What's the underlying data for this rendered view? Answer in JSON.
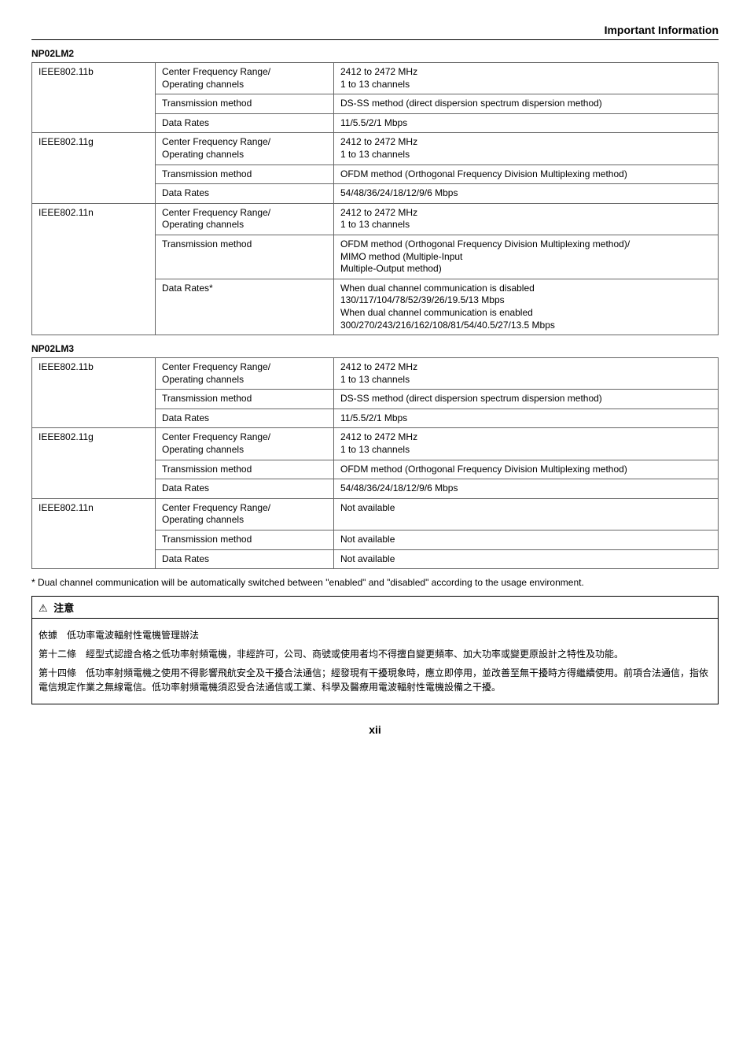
{
  "header": {
    "section_title": "Important Information"
  },
  "model1": {
    "name": "NP02LM2",
    "rows": [
      {
        "c1": "IEEE802.11b",
        "c2": "Center Frequency Range/\nOperating channels",
        "c3": "2412 to 2472 MHz\n1 to 13 channels",
        "span1": 3
      },
      {
        "c2": "Transmission method",
        "c3": "DS-SS method (direct dispersion spectrum dispersion method)"
      },
      {
        "c2": "Data Rates",
        "c3": "11/5.5/2/1 Mbps"
      },
      {
        "c1": "IEEE802.11g",
        "c2": "Center Frequency Range/\nOperating channels",
        "c3": "2412 to 2472 MHz\n1 to 13 channels",
        "span1": 3
      },
      {
        "c2": "Transmission method",
        "c3": "OFDM method (Orthogonal Frequency Division Multiplexing method)"
      },
      {
        "c2": "Data Rates",
        "c3": "54/48/36/24/18/12/9/6 Mbps"
      },
      {
        "c1": "IEEE802.11n",
        "c2": "Center Frequency Range/\nOperating channels",
        "c3": "2412 to 2472 MHz\n1 to 13 channels",
        "span1": 3
      },
      {
        "c2": "Transmission method",
        "c3": "OFDM method (Orthogonal Frequency Division Multiplexing method)/\nMIMO method (Multiple-Input\nMultiple-Output method)"
      },
      {
        "c2": "Data Rates*",
        "c3": "When dual channel communication is disabled\n130/117/104/78/52/39/26/19.5/13 Mbps\nWhen dual channel communication is enabled\n300/270/243/216/162/108/81/54/40.5/27/13.5 Mbps"
      }
    ]
  },
  "model2": {
    "name": "NP02LM3",
    "rows": [
      {
        "c1": "IEEE802.11b",
        "c2": "Center Frequency Range/\nOperating channels",
        "c3": "2412 to 2472 MHz\n1 to 13 channels",
        "span1": 3
      },
      {
        "c2": "Transmission method",
        "c3": "DS-SS method (direct dispersion spectrum dispersion method)"
      },
      {
        "c2": "Data Rates",
        "c3": "11/5.5/2/1 Mbps"
      },
      {
        "c1": "IEEE802.11g",
        "c2": "Center Frequency Range/\nOperating channels",
        "c3": "2412 to 2472 MHz\n1 to 13 channels",
        "span1": 3
      },
      {
        "c2": "Transmission method",
        "c3": "OFDM method (Orthogonal Frequency Division Multiplexing method)"
      },
      {
        "c2": "Data Rates",
        "c3": "54/48/36/24/18/12/9/6 Mbps"
      },
      {
        "c1": "IEEE802.11n",
        "c2": "Center Frequency Range/\nOperating channels",
        "c3": "Not available",
        "span1": 3
      },
      {
        "c2": "Transmission method",
        "c3": "Not available"
      },
      {
        "c2": "Data Rates",
        "c3": "Not available"
      }
    ]
  },
  "footnote": "*   Dual channel communication will be automatically switched between \"enabled\" and \"disabled\" according to the usage environment.",
  "caution": {
    "icon": "⚠",
    "title": "注意",
    "p1": "依據　低功率電波輻射性電機管理辦法",
    "p2": "第十二條　經型式認證合格之低功率射頻電機，非經許可，公司、商號或使用者均不得擅自變更頻率、加大功率或變更原設計之特性及功能。",
    "p3": "第十四條　低功率射頻電機之使用不得影響飛航安全及干擾合法通信；經發現有干擾現象時，應立即停用，並改善至無干擾時方得繼續使用。前項合法通信，指依電信規定作業之無線電信。低功率射頻電機須忍受合法通信或工業、科學及醫療用電波輻射性電機設備之干擾。"
  },
  "pagenum": "xii"
}
